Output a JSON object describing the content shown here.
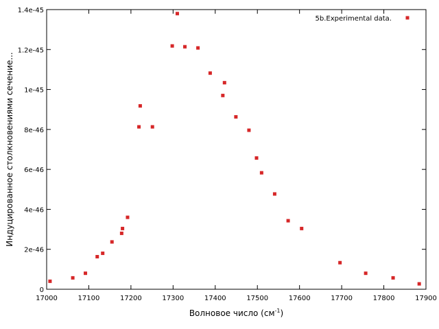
{
  "chart_data": {
    "type": "scatter",
    "xlabel": "Волновое число (см",
    "xlabel_sup": "-1",
    "xlabel_close": ")",
    "ylabel": "Индуцированное столкновениями сечение...",
    "xlim": [
      17000,
      17900
    ],
    "ylim": [
      0,
      1.4e-45
    ],
    "x_ticks": [
      17000,
      17100,
      17200,
      17300,
      17400,
      17500,
      17600,
      17700,
      17800,
      17900
    ],
    "x_tick_labels": [
      "17000",
      "17100",
      "17200",
      "17300",
      "17400",
      "17500",
      "17600",
      "17700",
      "17800",
      "17900"
    ],
    "y_ticks": [
      0,
      2e-46,
      4e-46,
      6e-46,
      8e-46,
      1e-45,
      1.2e-45,
      1.4e-45
    ],
    "y_tick_labels": [
      "0",
      "2e-46",
      "4e-46",
      "6e-46",
      "8e-46",
      "1e-45",
      "1.2e-45",
      "1.4e-45"
    ],
    "grid": false,
    "legend_position": "top-right",
    "marker_color": "#d62728",
    "series": [
      {
        "name": "5b.Experimental data.",
        "x": [
          17008,
          17062,
          17092,
          17120,
          17133,
          17155,
          17178,
          17180,
          17192,
          17219,
          17222,
          17251,
          17298,
          17310,
          17328,
          17359,
          17388,
          17418,
          17422,
          17449,
          17480,
          17498,
          17510,
          17541,
          17573,
          17605,
          17696,
          17757,
          17822,
          17884
        ],
        "y": [
          4e-47,
          5.7e-47,
          8e-47,
          1.63e-46,
          1.8e-46,
          2.37e-46,
          2.8e-46,
          3.04e-46,
          3.6e-46,
          8.13e-46,
          9.18e-46,
          8.13e-46,
          1.218e-45,
          1.38e-45,
          1.214e-45,
          1.208e-45,
          1.082e-45,
          9.7e-46,
          1.034e-45,
          8.63e-46,
          7.96e-46,
          6.57e-46,
          5.83e-46,
          4.77e-46,
          3.43e-46,
          3.04e-46,
          1.33e-46,
          8e-47,
          5.7e-47,
          2.7e-47
        ]
      }
    ]
  }
}
